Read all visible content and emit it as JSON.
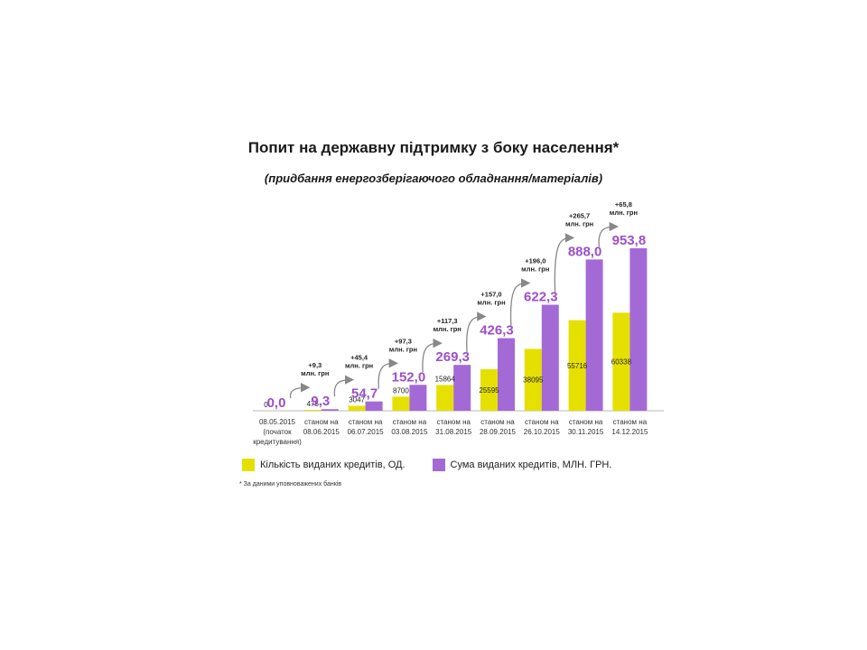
{
  "title": "Попит на державну підтримку з боку населення*",
  "subtitle": "(придбання енергозберігаючого обладнання/матеріалів)",
  "footnote": "* За даними уповноважених банків",
  "colors": {
    "count": "#e6e000",
    "sum": "#a36ad6",
    "sum_label": "#9c4fc9"
  },
  "chart_data": {
    "type": "bar",
    "categories": [
      [
        "08.05.2015",
        "(початок",
        "кредитування)"
      ],
      [
        "станом на",
        "08.06.2015"
      ],
      [
        "станом на",
        "06.07.2015"
      ],
      [
        "станом на",
        "03.08.2015"
      ],
      [
        "станом на",
        "31.08.2015"
      ],
      [
        "станом на",
        "28.09.2015"
      ],
      [
        "станом на",
        "26.10.2015"
      ],
      [
        "станом на",
        "30.11.2015"
      ],
      [
        "станом на",
        "14.12.2015"
      ]
    ],
    "series": [
      {
        "name": "Кількість виданих кредитів, ОД.",
        "values": [
          0,
          475,
          3047,
          8700,
          15864,
          25595,
          38095,
          55716,
          60338
        ],
        "labels": [
          "0",
          "475",
          "3047",
          "8700",
          "15864",
          "25595",
          "38095",
          "55716",
          "60338"
        ]
      },
      {
        "name": "Сума виданих кредитів, МЛН. ГРН.",
        "values": [
          0.0,
          9.3,
          54.7,
          152.0,
          269.3,
          426.3,
          622.3,
          888.0,
          953.8
        ],
        "labels": [
          "0,0",
          "9,3",
          "54,7",
          "152,0",
          "269,3",
          "426,3",
          "622,3",
          "888,0",
          "953,8"
        ]
      }
    ],
    "increments": [
      null,
      [
        "+9,3",
        "млн. грн"
      ],
      [
        "+45,4",
        "млн. грн"
      ],
      [
        "+97,3",
        "млн. грн"
      ],
      [
        "+117,3",
        "млн. грн"
      ],
      [
        "+157,0",
        "млн. грн"
      ],
      [
        "+196,0",
        "млн. грн"
      ],
      [
        "+265,7",
        "млн. грн"
      ],
      [
        "+65,8",
        "млн. грн"
      ]
    ],
    "ylim_count": [
      0,
      100000
    ],
    "ylim_sum": [
      0,
      1100
    ]
  }
}
